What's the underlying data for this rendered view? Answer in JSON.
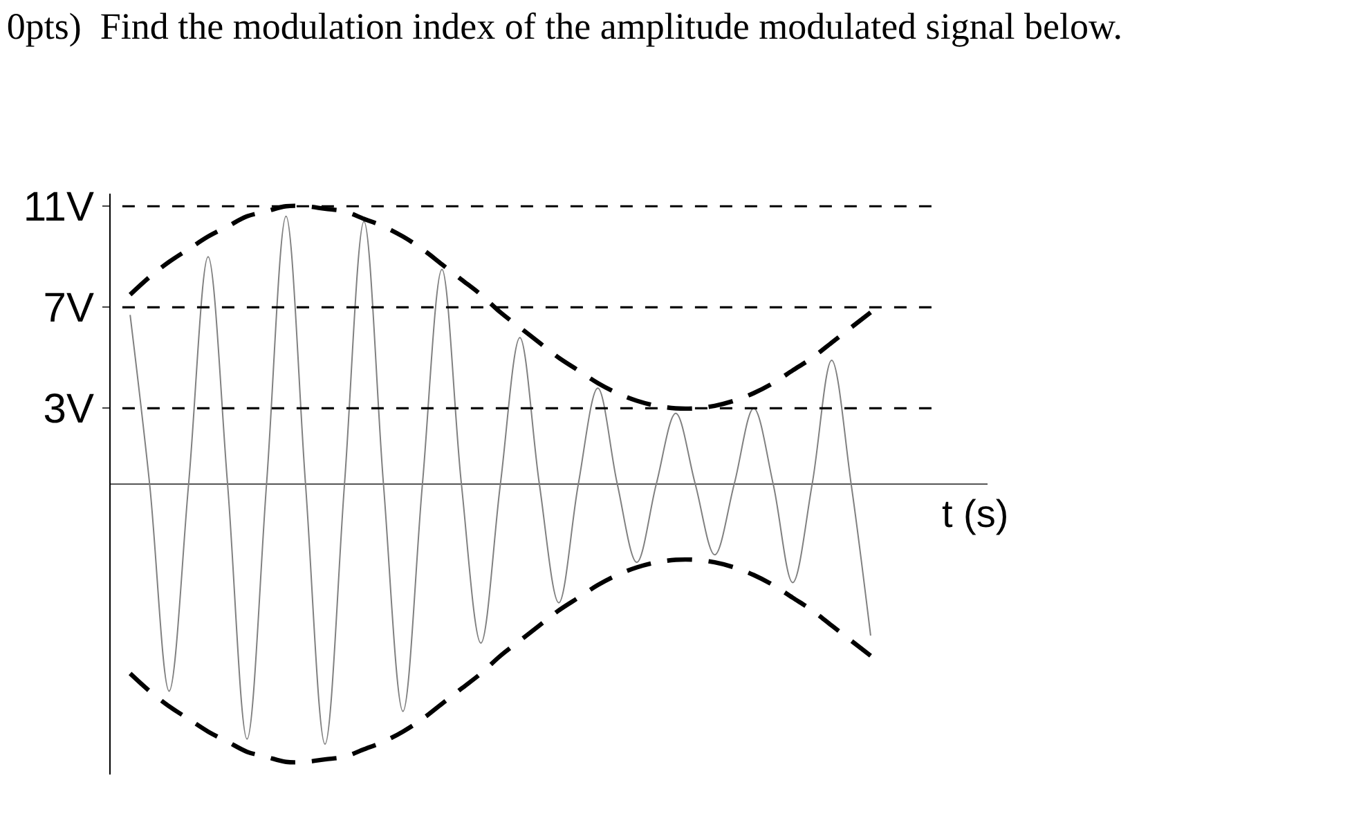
{
  "chart_data": {
    "type": "line",
    "title": "0pts)  Find the modulation index of the amplitude modulated signal below.",
    "xlabel": "t (s)",
    "categories": [
      null,
      null,
      null,
      null,
      null,
      null,
      null,
      null,
      null,
      null,
      null,
      null,
      null,
      null,
      null,
      null,
      null,
      null,
      null,
      null,
      null,
      null,
      null,
      null,
      null,
      null,
      null,
      null,
      null,
      null,
      null,
      null,
      null,
      null,
      null,
      null,
      null,
      null,
      null
    ],
    "series": [
      {
        "color": "#808080",
        "line_style": "solid",
        "values": [
          6.7,
          0,
          -8.2,
          0,
          9.0,
          0,
          -10.1,
          0,
          10.6,
          0,
          -10.3,
          0,
          10.4,
          0,
          -9.0,
          0,
          8.5,
          0,
          -6.3,
          0,
          5.8,
          0,
          -4.7,
          0,
          3.8,
          0,
          -3.1,
          0,
          2.8,
          0,
          -2.8,
          0,
          3.0,
          0,
          -3.9,
          0,
          4.9,
          0,
          -6.0
        ]
      },
      {
        "color": "#000000",
        "line_style": "dashed",
        "values": [
          7.5,
          8.2,
          8.8,
          9.3,
          9.8,
          10.2,
          10.6,
          10.8,
          11.0,
          11.0,
          10.9,
          10.8,
          10.5,
          10.2,
          9.8,
          9.3,
          8.7,
          8.1,
          7.5,
          6.8,
          6.2,
          5.6,
          5.0,
          4.5,
          4.0,
          3.6,
          3.3,
          3.1,
          3.0,
          3.0,
          3.1,
          3.3,
          3.6,
          4.0,
          4.5,
          5.0,
          5.6,
          6.2,
          6.8
        ]
      },
      {
        "color": "#000000",
        "line_style": "dashed",
        "values": [
          -7.5,
          -8.2,
          -8.8,
          -9.3,
          -9.8,
          -10.2,
          -10.6,
          -10.8,
          -11.0,
          -11.0,
          -10.9,
          -10.8,
          -10.5,
          -10.2,
          -9.8,
          -9.3,
          -8.7,
          -8.1,
          -7.5,
          -6.8,
          -6.2,
          -5.6,
          -5.0,
          -4.5,
          -4.0,
          -3.6,
          -3.3,
          -3.1,
          -3.0,
          -3.0,
          -3.1,
          -3.3,
          -3.6,
          -4.0,
          -4.5,
          -5.0,
          -5.6,
          -6.2,
          -6.8
        ]
      }
    ],
    "ylim": [
      -11.5,
      11.5
    ],
    "yticks": [
      {
        "value": 11,
        "label": "11V"
      },
      {
        "value": 7,
        "label": "7V"
      },
      {
        "value": 3,
        "label": "3V"
      }
    ],
    "ref_lines": [
      {
        "axis": "y",
        "value": 11,
        "color": "#000000",
        "line_style": "dashed"
      },
      {
        "axis": "y",
        "value": 7,
        "color": "#000000",
        "line_style": "dashed"
      },
      {
        "axis": "y",
        "value": 3,
        "color": "#000000",
        "line_style": "dashed"
      }
    ],
    "tick_labels": "y",
    "marker": "none"
  }
}
